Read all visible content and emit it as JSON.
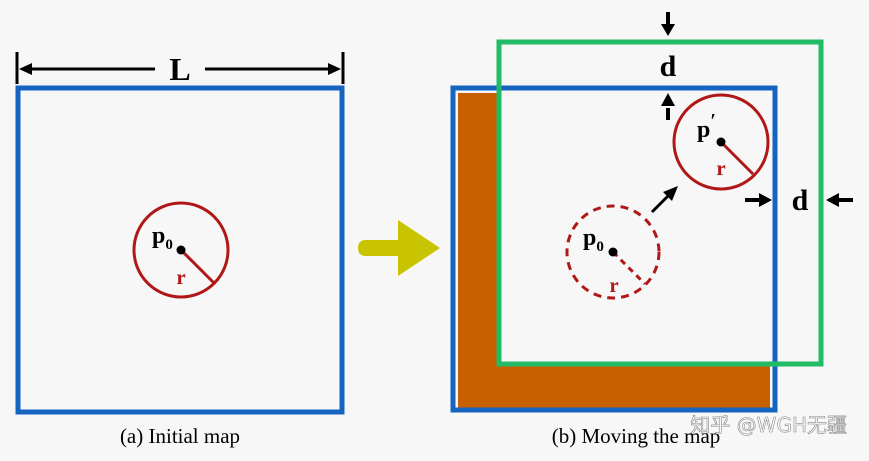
{
  "figure": {
    "length_label": "L",
    "initial_point_main": "p",
    "initial_point_sub": "0",
    "radius_label": "r",
    "moved_point_main": "p",
    "moved_point_prime": "′",
    "shift_label": "d",
    "caption_a": "(a) Initial map",
    "caption_b": "(b) Moving the map",
    "watermark": "知乎 @WGH无疆"
  },
  "colors": {
    "map_border": "#1565c0",
    "moved_map_border": "#22bb66",
    "circle": "#b01818",
    "overlap_fill": "#c85f00",
    "arrow": "#c8c400",
    "ink": "#000000"
  }
}
